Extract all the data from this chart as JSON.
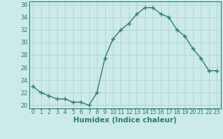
{
  "x": [
    0,
    1,
    2,
    3,
    4,
    5,
    6,
    7,
    8,
    9,
    10,
    11,
    12,
    13,
    14,
    15,
    16,
    17,
    18,
    19,
    20,
    21,
    22,
    23
  ],
  "y": [
    23,
    22,
    21.5,
    21,
    21,
    20.5,
    20.5,
    20,
    22,
    27.5,
    30.5,
    32,
    33,
    34.5,
    35.5,
    35.5,
    34.5,
    34,
    32,
    31,
    29,
    27.5,
    25.5,
    25.5
  ],
  "line_color": "#2e7d6e",
  "marker": "+",
  "marker_size": 4,
  "line_width": 1.0,
  "bg_color": "#cceaea",
  "grid_color": "#b8d4d4",
  "xlabel": "Humidex (Indice chaleur)",
  "xlim": [
    -0.5,
    23.5
  ],
  "ylim": [
    19.5,
    36.5
  ],
  "yticks": [
    20,
    22,
    24,
    26,
    28,
    30,
    32,
    34,
    36
  ],
  "xticks": [
    0,
    1,
    2,
    3,
    4,
    5,
    6,
    7,
    8,
    9,
    10,
    11,
    12,
    13,
    14,
    15,
    16,
    17,
    18,
    19,
    20,
    21,
    22,
    23
  ],
  "tick_fontsize": 6,
  "xlabel_fontsize": 7.5,
  "tick_color": "#2e7d6e",
  "spine_color": "#2e7d6e"
}
